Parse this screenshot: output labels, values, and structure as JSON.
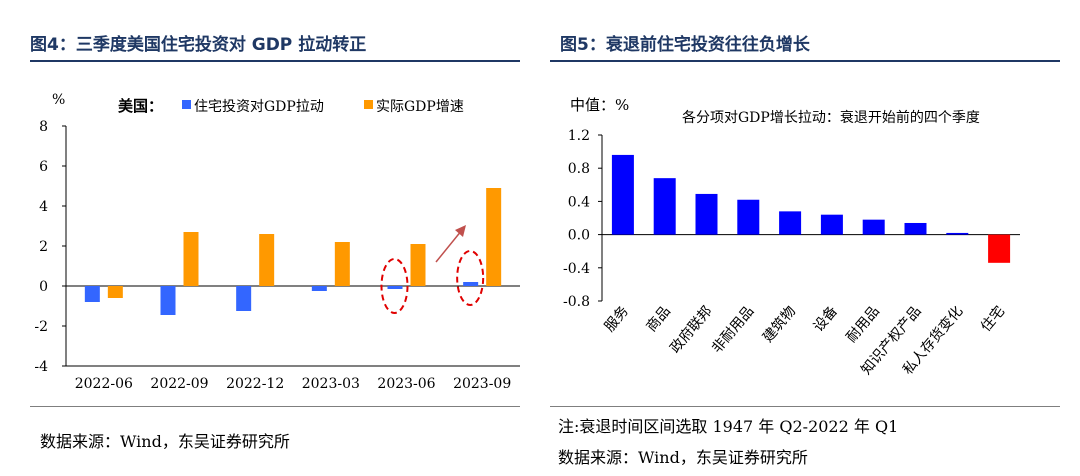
{
  "left": {
    "figure_title": "图4：三季度美国住宅投资对 GDP 拉动转正",
    "source": "数据来源：Wind，东吴证券研究所"
  },
  "right": {
    "figure_title": "图5：衰退前住宅投资往往负增长",
    "note": "注:衰退时间区间选取 1947 年 Q2-2022 年 Q1",
    "source": "数据来源：Wind，东吴证券研究所"
  },
  "colors": {
    "blue_bar": "#3366ff",
    "orange_bar": "#ff9900",
    "pure_blue": "#0000ff",
    "red": "#ff0000",
    "title": "#1f3864"
  },
  "chart_data": [
    {
      "type": "bar",
      "unit_label": "%",
      "legend_prefix": "美国：",
      "categories": [
        "2022-06",
        "2022-09",
        "2022-12",
        "2023-03",
        "2023-06",
        "2023-09"
      ],
      "series": [
        {
          "name": "住宅投资对GDP拉动",
          "values": [
            -0.8,
            -1.45,
            -1.25,
            -0.25,
            -0.15,
            0.2
          ]
        },
        {
          "name": "实际GDP增速",
          "values": [
            -0.6,
            2.7,
            2.6,
            2.2,
            2.1,
            4.9
          ]
        }
      ],
      "yticks": [
        "8",
        "6",
        "4",
        "2",
        "0",
        "-2",
        "-4"
      ],
      "ylim": [
        -4,
        8
      ],
      "legend_position": "top",
      "annotations": [
        "red dashed ellipse around 2023-06 residential bar",
        "red dashed ellipse around 2023-09 residential bar",
        "red arrow rising to 2023-09"
      ]
    },
    {
      "type": "bar",
      "ylabel": "中值：%",
      "title": "各分项对GDP增长拉动：衰退开始前的四个季度",
      "categories": [
        "服务",
        "商品",
        "政府联邦",
        "非耐用品",
        "建筑物",
        "设备",
        "耐用品",
        "知识产权产品",
        "私人存货变化",
        "住宅"
      ],
      "values": [
        0.96,
        0.68,
        0.49,
        0.42,
        0.28,
        0.24,
        0.18,
        0.14,
        0.02,
        -0.34
      ],
      "yticks": [
        "1.2",
        "0.8",
        "0.4",
        "0.0",
        "-0.4",
        "-0.8"
      ],
      "ylim": [
        -0.8,
        1.2
      ]
    }
  ]
}
